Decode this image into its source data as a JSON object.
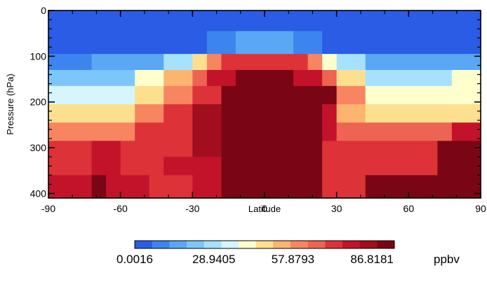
{
  "chart_data": {
    "type": "heatmap",
    "title": "",
    "xlabel": "Latitude",
    "ylabel": "Pressure (hPa)",
    "xlim": [
      -90,
      90
    ],
    "ylim": [
      410,
      0
    ],
    "x_ticks": [
      -90,
      -60,
      -30,
      0,
      30,
      60,
      90
    ],
    "x_tick_labels": [
      "-90",
      "-60",
      "-30",
      "0",
      "30",
      "60",
      "90"
    ],
    "y_ticks": [
      0,
      100,
      200,
      300,
      400
    ],
    "y_tick_labels": [
      "0",
      "100",
      "200",
      "300",
      "400"
    ],
    "colorbar": {
      "unit": "ppbv",
      "min": 0.0016,
      "max": 95.0,
      "tick_values": [
        0.0016,
        28.9405,
        57.8793,
        86.8181
      ],
      "tick_labels": [
        "0.0016",
        "28.9405",
        "57.8793",
        "86.8181"
      ],
      "colors": [
        "#2a5ce6",
        "#3d85ee",
        "#5aa7f5",
        "#7dc6fb",
        "#a6e2ff",
        "#d6f5ff",
        "#ffffcc",
        "#fde08f",
        "#fcb46f",
        "#f78560",
        "#ee6452",
        "#dc3238",
        "#c3132a",
        "#a10e1e",
        "#7a0615"
      ]
    },
    "notes": "Each cell is a discrete value band; level = index into colorbar.colors (value ≈ level × 6.33 ppbv).",
    "cells": [
      {
        "lat": [
          -90,
          90
        ],
        "p": [
          0,
          45
        ],
        "level": 0
      },
      {
        "lat": [
          -90,
          -48
        ],
        "p": [
          45,
          95
        ],
        "level": 0
      },
      {
        "lat": [
          -48,
          -24
        ],
        "p": [
          45,
          95
        ],
        "level": 0
      },
      {
        "lat": [
          -24,
          -12
        ],
        "p": [
          45,
          95
        ],
        "level": 1
      },
      {
        "lat": [
          -12,
          12
        ],
        "p": [
          45,
          95
        ],
        "level": 2
      },
      {
        "lat": [
          12,
          24
        ],
        "p": [
          45,
          95
        ],
        "level": 1
      },
      {
        "lat": [
          24,
          60
        ],
        "p": [
          45,
          95
        ],
        "level": 0
      },
      {
        "lat": [
          60,
          90
        ],
        "p": [
          45,
          95
        ],
        "level": 0
      },
      {
        "lat": [
          -90,
          -72
        ],
        "p": [
          95,
          130
        ],
        "level": 1
      },
      {
        "lat": [
          -72,
          -42
        ],
        "p": [
          95,
          130
        ],
        "level": 2
      },
      {
        "lat": [
          -42,
          -30
        ],
        "p": [
          95,
          130
        ],
        "level": 4
      },
      {
        "lat": [
          -30,
          -24
        ],
        "p": [
          95,
          130
        ],
        "level": 7
      },
      {
        "lat": [
          -24,
          -18
        ],
        "p": [
          95,
          130
        ],
        "level": 9
      },
      {
        "lat": [
          -18,
          18
        ],
        "p": [
          95,
          130
        ],
        "level": 11
      },
      {
        "lat": [
          18,
          24
        ],
        "p": [
          95,
          130
        ],
        "level": 9
      },
      {
        "lat": [
          24,
          30
        ],
        "p": [
          95,
          130
        ],
        "level": 6
      },
      {
        "lat": [
          30,
          42
        ],
        "p": [
          95,
          130
        ],
        "level": 4
      },
      {
        "lat": [
          42,
          90
        ],
        "p": [
          95,
          130
        ],
        "level": 2
      },
      {
        "lat": [
          -90,
          -54
        ],
        "p": [
          130,
          165
        ],
        "level": 3
      },
      {
        "lat": [
          -54,
          -42
        ],
        "p": [
          130,
          165
        ],
        "level": 6
      },
      {
        "lat": [
          -42,
          -30
        ],
        "p": [
          130,
          165
        ],
        "level": 8
      },
      {
        "lat": [
          -30,
          -24
        ],
        "p": [
          130,
          165
        ],
        "level": 10
      },
      {
        "lat": [
          -24,
          -12
        ],
        "p": [
          130,
          165
        ],
        "level": 12
      },
      {
        "lat": [
          -12,
          12
        ],
        "p": [
          130,
          165
        ],
        "level": 14
      },
      {
        "lat": [
          12,
          24
        ],
        "p": [
          130,
          165
        ],
        "level": 12
      },
      {
        "lat": [
          24,
          30
        ],
        "p": [
          130,
          165
        ],
        "level": 10
      },
      {
        "lat": [
          30,
          42
        ],
        "p": [
          130,
          165
        ],
        "level": 7
      },
      {
        "lat": [
          42,
          78
        ],
        "p": [
          130,
          165
        ],
        "level": 4
      },
      {
        "lat": [
          78,
          90
        ],
        "p": [
          130,
          165
        ],
        "level": 6
      },
      {
        "lat": [
          -90,
          -54
        ],
        "p": [
          165,
          205
        ],
        "level": 5
      },
      {
        "lat": [
          -54,
          -42
        ],
        "p": [
          165,
          205
        ],
        "level": 7
      },
      {
        "lat": [
          -42,
          -30
        ],
        "p": [
          165,
          205
        ],
        "level": 9
      },
      {
        "lat": [
          -30,
          -18
        ],
        "p": [
          165,
          205
        ],
        "level": 11
      },
      {
        "lat": [
          -18,
          30
        ],
        "p": [
          165,
          205
        ],
        "level": 14
      },
      {
        "lat": [
          30,
          42
        ],
        "p": [
          165,
          205
        ],
        "level": 9
      },
      {
        "lat": [
          42,
          90
        ],
        "p": [
          165,
          205
        ],
        "level": 6
      },
      {
        "lat": [
          -90,
          -54
        ],
        "p": [
          205,
          245
        ],
        "level": 7
      },
      {
        "lat": [
          -54,
          -42
        ],
        "p": [
          205,
          245
        ],
        "level": 9
      },
      {
        "lat": [
          -42,
          -30
        ],
        "p": [
          205,
          245
        ],
        "level": 11
      },
      {
        "lat": [
          -30,
          -18
        ],
        "p": [
          205,
          245
        ],
        "level": 13
      },
      {
        "lat": [
          -18,
          24
        ],
        "p": [
          205,
          245
        ],
        "level": 14
      },
      {
        "lat": [
          24,
          30
        ],
        "p": [
          205,
          245
        ],
        "level": 12
      },
      {
        "lat": [
          30,
          42
        ],
        "p": [
          205,
          245
        ],
        "level": 8
      },
      {
        "lat": [
          42,
          90
        ],
        "p": [
          205,
          245
        ],
        "level": 7
      },
      {
        "lat": [
          -90,
          -54
        ],
        "p": [
          245,
          285
        ],
        "level": 9
      },
      {
        "lat": [
          -54,
          -30
        ],
        "p": [
          245,
          285
        ],
        "level": 11
      },
      {
        "lat": [
          -30,
          -18
        ],
        "p": [
          245,
          285
        ],
        "level": 13
      },
      {
        "lat": [
          -18,
          24
        ],
        "p": [
          245,
          285
        ],
        "level": 14
      },
      {
        "lat": [
          24,
          30
        ],
        "p": [
          245,
          285
        ],
        "level": 12
      },
      {
        "lat": [
          30,
          78
        ],
        "p": [
          245,
          285
        ],
        "level": 10
      },
      {
        "lat": [
          78,
          90
        ],
        "p": [
          245,
          285
        ],
        "level": 12
      },
      {
        "lat": [
          -90,
          -72
        ],
        "p": [
          285,
          320
        ],
        "level": 11
      },
      {
        "lat": [
          -72,
          -60
        ],
        "p": [
          285,
          320
        ],
        "level": 12
      },
      {
        "lat": [
          -60,
          -30
        ],
        "p": [
          285,
          320
        ],
        "level": 11
      },
      {
        "lat": [
          -30,
          -18
        ],
        "p": [
          285,
          320
        ],
        "level": 13
      },
      {
        "lat": [
          -18,
          24
        ],
        "p": [
          285,
          320
        ],
        "level": 14
      },
      {
        "lat": [
          24,
          72
        ],
        "p": [
          285,
          320
        ],
        "level": 11
      },
      {
        "lat": [
          72,
          90
        ],
        "p": [
          285,
          320
        ],
        "level": 14
      },
      {
        "lat": [
          -90,
          -72
        ],
        "p": [
          320,
          360
        ],
        "level": 11
      },
      {
        "lat": [
          -72,
          -60
        ],
        "p": [
          320,
          360
        ],
        "level": 12
      },
      {
        "lat": [
          -60,
          -42
        ],
        "p": [
          320,
          360
        ],
        "level": 11
      },
      {
        "lat": [
          -42,
          -18
        ],
        "p": [
          320,
          360
        ],
        "level": 12
      },
      {
        "lat": [
          -18,
          24
        ],
        "p": [
          320,
          360
        ],
        "level": 14
      },
      {
        "lat": [
          24,
          72
        ],
        "p": [
          320,
          360
        ],
        "level": 11
      },
      {
        "lat": [
          72,
          90
        ],
        "p": [
          320,
          360
        ],
        "level": 14
      },
      {
        "lat": [
          -90,
          -72
        ],
        "p": [
          360,
          410
        ],
        "level": 12
      },
      {
        "lat": [
          -72,
          -66
        ],
        "p": [
          360,
          410
        ],
        "level": 14
      },
      {
        "lat": [
          -66,
          -48
        ],
        "p": [
          360,
          410
        ],
        "level": 12
      },
      {
        "lat": [
          -48,
          -30
        ],
        "p": [
          360,
          410
        ],
        "level": 11
      },
      {
        "lat": [
          -30,
          -18
        ],
        "p": [
          360,
          410
        ],
        "level": 12
      },
      {
        "lat": [
          -18,
          24
        ],
        "p": [
          360,
          410
        ],
        "level": 14
      },
      {
        "lat": [
          24,
          42
        ],
        "p": [
          360,
          410
        ],
        "level": 11
      },
      {
        "lat": [
          42,
          90
        ],
        "p": [
          360,
          410
        ],
        "level": 14
      }
    ]
  }
}
